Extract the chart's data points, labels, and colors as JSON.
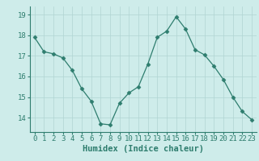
{
  "x": [
    0,
    1,
    2,
    3,
    4,
    5,
    6,
    7,
    8,
    9,
    10,
    11,
    12,
    13,
    14,
    15,
    16,
    17,
    18,
    19,
    20,
    21,
    22,
    23
  ],
  "y": [
    17.9,
    17.2,
    17.1,
    16.9,
    16.3,
    15.4,
    14.8,
    13.7,
    13.65,
    14.7,
    15.2,
    15.5,
    16.6,
    17.9,
    18.2,
    18.9,
    18.3,
    17.3,
    17.05,
    16.5,
    15.85,
    15.0,
    14.3,
    13.9
  ],
  "line_color": "#2e7d6e",
  "marker": "D",
  "marker_size": 2.5,
  "bg_color": "#ceecea",
  "grid_color": "#b0d5d2",
  "xlabel": "Humidex (Indice chaleur)",
  "xlabel_fontsize": 7.5,
  "ylim": [
    13.3,
    19.4
  ],
  "yticks": [
    14,
    15,
    16,
    17,
    18,
    19
  ],
  "xticks": [
    0,
    1,
    2,
    3,
    4,
    5,
    6,
    7,
    8,
    9,
    10,
    11,
    12,
    13,
    14,
    15,
    16,
    17,
    18,
    19,
    20,
    21,
    22,
    23
  ],
  "tick_fontsize": 6.5,
  "spine_color": "#2e7d6e",
  "axis_bg": "#ceecea"
}
